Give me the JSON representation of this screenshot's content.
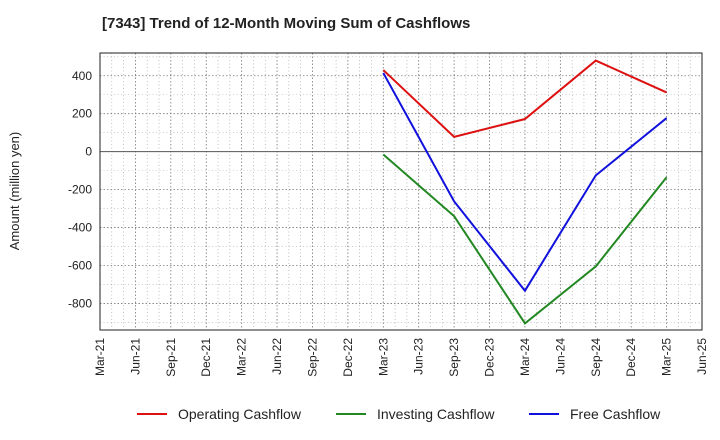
{
  "chart_data": {
    "type": "line",
    "title": "[7343]  Trend of 12-Month Moving Sum of Cashflows",
    "xlabel": "",
    "ylabel": "Amount (million yen)",
    "x_ticks": [
      "Mar-21",
      "Jun-21",
      "Sep-21",
      "Dec-21",
      "Mar-22",
      "Jun-22",
      "Sep-22",
      "Dec-22",
      "Mar-23",
      "Jun-23",
      "Sep-23",
      "Dec-23",
      "Mar-24",
      "Jun-24",
      "Sep-24",
      "Dec-24",
      "Mar-25",
      "Jun-25"
    ],
    "y_ticks": [
      400,
      200,
      0,
      -200,
      -400,
      -600,
      -800
    ],
    "ylim": [
      -940,
      520
    ],
    "grid": true,
    "legend_position": "bottom",
    "series": [
      {
        "name": "Operating Cashflow",
        "color": "#dd1111",
        "points": [
          [
            "Mar-23",
            430
          ],
          [
            "Sep-23",
            78
          ],
          [
            "Mar-24",
            172
          ],
          [
            "Sep-24",
            480
          ],
          [
            "Mar-25",
            312
          ]
        ]
      },
      {
        "name": "Investing Cashflow",
        "color": "#228822",
        "points": [
          [
            "Mar-23",
            -15
          ],
          [
            "Sep-23",
            -340
          ],
          [
            "Mar-24",
            -905
          ],
          [
            "Sep-24",
            -605
          ],
          [
            "Mar-25",
            -135
          ]
        ]
      },
      {
        "name": "Free Cashflow",
        "color": "#1111dd",
        "points": [
          [
            "Mar-23",
            415
          ],
          [
            "Sep-23",
            -262
          ],
          [
            "Mar-24",
            -733
          ],
          [
            "Sep-24",
            -125
          ],
          [
            "Mar-25",
            177
          ]
        ]
      }
    ]
  }
}
